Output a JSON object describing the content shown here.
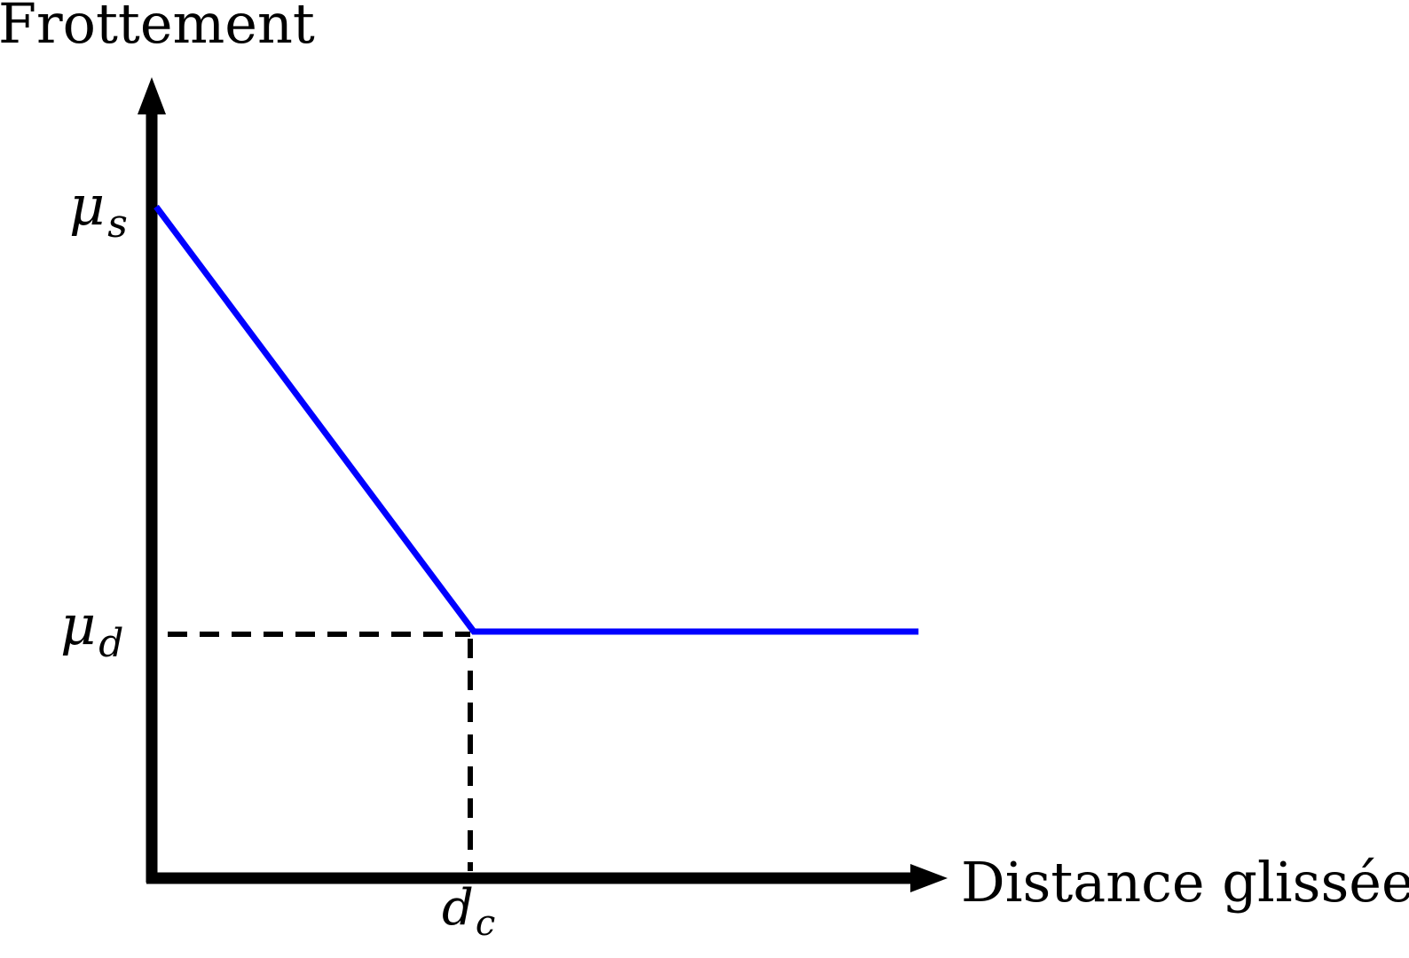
{
  "chart_data": {
    "type": "line",
    "title": "",
    "ylabel": "Frottement",
    "xlabel": "Distance glissée",
    "x_ticks": [
      {
        "label_base": "d",
        "label_sub": "c",
        "x": 1
      }
    ],
    "y_ticks": [
      {
        "label_base": "μ",
        "label_sub": "s",
        "y": 1
      },
      {
        "label_base": "μ",
        "label_sub": "d",
        "y": 0
      }
    ],
    "series": [
      {
        "color": "#0000ff",
        "points": [
          {
            "x": 0,
            "y": 1
          },
          {
            "x": 1,
            "y": 0
          },
          {
            "x": 2.4,
            "y": 0
          }
        ]
      }
    ],
    "reference_lines": [
      {
        "style": "dashed",
        "color": "#000000",
        "from": {
          "x": 0,
          "y": 0
        },
        "to": {
          "x": 1,
          "y": 0
        }
      },
      {
        "style": "dashed",
        "color": "#000000",
        "from": {
          "x": 1,
          "y": 0
        },
        "to": {
          "x": 1,
          "y": "axis"
        }
      }
    ],
    "axis_color": "#000000",
    "grid": false,
    "legend": "none"
  }
}
